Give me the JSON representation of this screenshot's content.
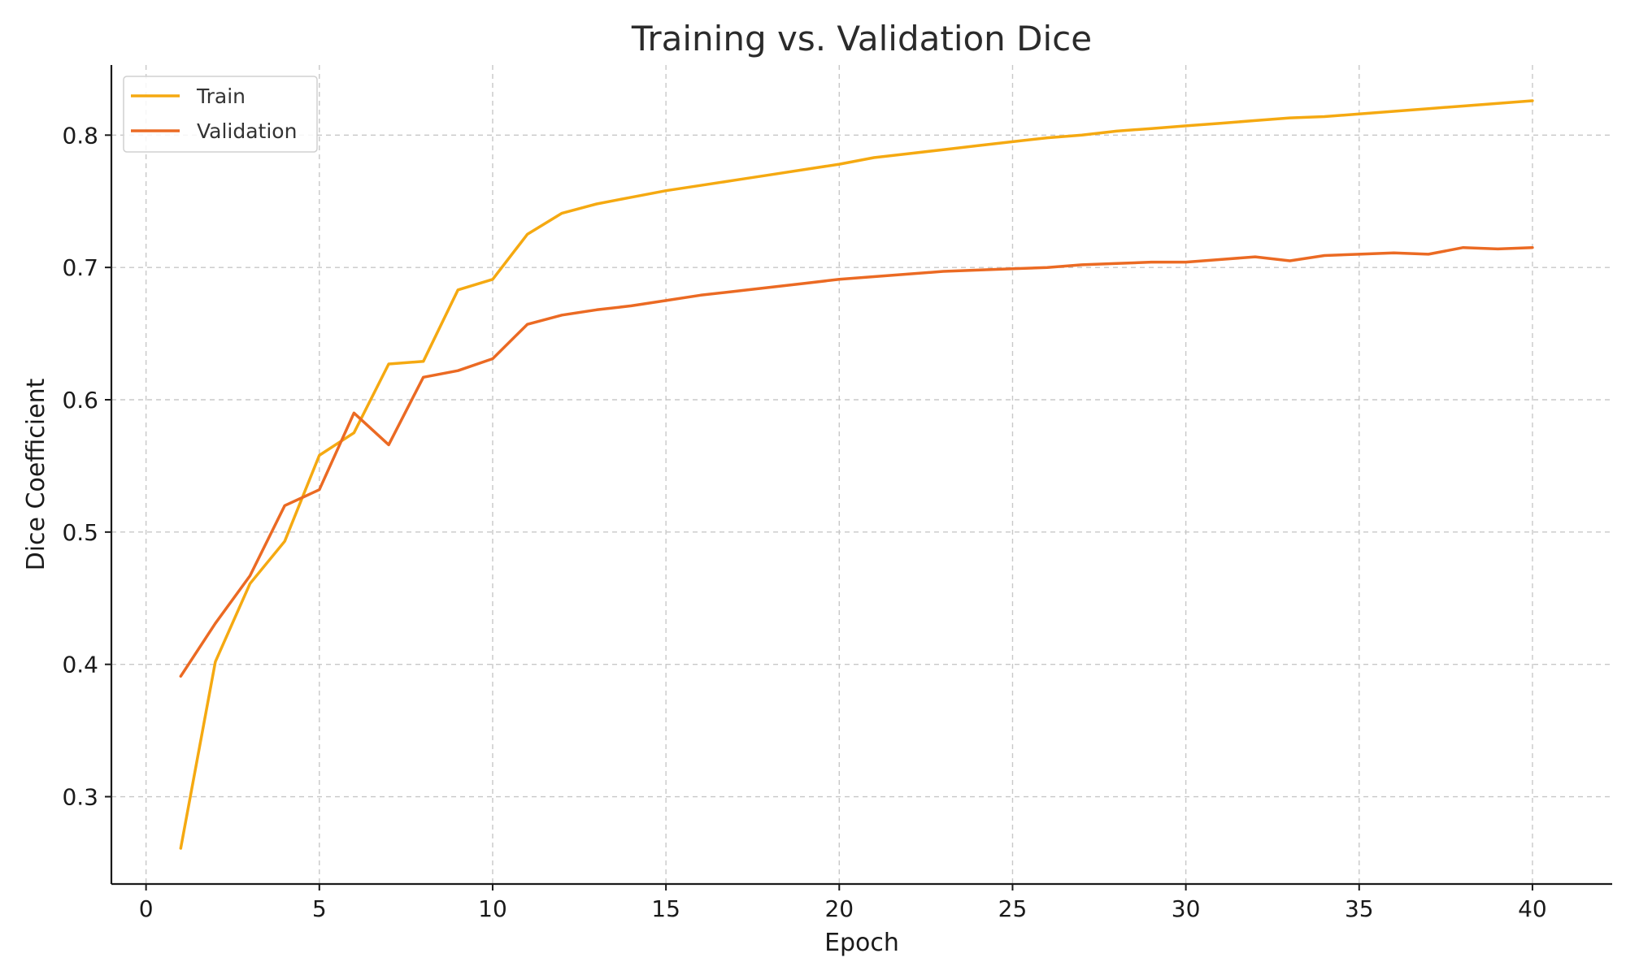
{
  "chart_data": {
    "type": "line",
    "title": "Training vs. Validation Dice",
    "xlabel": "Epoch",
    "ylabel": "Dice Coefficient",
    "xlim": [
      -1,
      42.3
    ],
    "ylim": [
      0.234,
      0.853
    ],
    "xticks": [
      0,
      5,
      10,
      15,
      20,
      25,
      30,
      35,
      40
    ],
    "xtick_labels": [
      "0",
      "5",
      "10",
      "15",
      "20",
      "25",
      "30",
      "35",
      "40"
    ],
    "yticks": [
      0.3,
      0.4,
      0.5,
      0.6,
      0.7,
      0.8
    ],
    "ytick_labels": [
      "0.3",
      "0.4",
      "0.5",
      "0.6",
      "0.7",
      "0.8"
    ],
    "grid": true,
    "legend_position": "top-left",
    "x": [
      1,
      2,
      3,
      4,
      5,
      6,
      7,
      8,
      9,
      10,
      11,
      12,
      13,
      14,
      15,
      16,
      17,
      18,
      19,
      20,
      21,
      22,
      23,
      24,
      25,
      26,
      27,
      28,
      29,
      30,
      31,
      32,
      33,
      34,
      35,
      36,
      37,
      38,
      39,
      40
    ],
    "series": [
      {
        "name": "Train",
        "color": "#F5A911",
        "values": [
          0.261,
          0.402,
          0.461,
          0.493,
          0.558,
          0.575,
          0.627,
          0.629,
          0.683,
          0.691,
          0.725,
          0.741,
          0.748,
          0.753,
          0.758,
          0.762,
          0.766,
          0.77,
          0.774,
          0.778,
          0.783,
          0.786,
          0.789,
          0.792,
          0.795,
          0.798,
          0.8,
          0.803,
          0.805,
          0.807,
          0.809,
          0.811,
          0.813,
          0.814,
          0.816,
          0.818,
          0.82,
          0.822,
          0.824,
          0.826
        ]
      },
      {
        "name": "Validation",
        "color": "#EB6A23",
        "values": [
          0.391,
          0.431,
          0.467,
          0.52,
          0.532,
          0.59,
          0.566,
          0.617,
          0.622,
          0.631,
          0.657,
          0.664,
          0.668,
          0.671,
          0.675,
          0.679,
          0.682,
          0.685,
          0.688,
          0.691,
          0.693,
          0.695,
          0.697,
          0.698,
          0.699,
          0.7,
          0.702,
          0.703,
          0.704,
          0.704,
          0.706,
          0.708,
          0.705,
          0.709,
          0.71,
          0.711,
          0.71,
          0.715,
          0.714,
          0.715
        ]
      }
    ]
  }
}
